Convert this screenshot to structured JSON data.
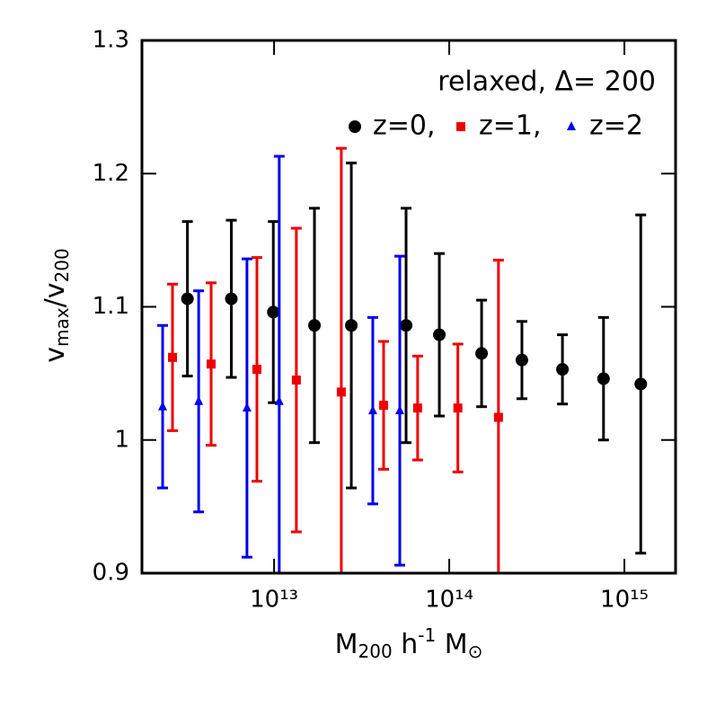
{
  "chart_data": {
    "type": "errorbar",
    "annotation": "relaxed, Δ= 200",
    "x_label": [
      "M",
      "200",
      " h",
      "-1",
      " M",
      "⊙"
    ],
    "y_label": [
      "v",
      "max",
      "/v",
      "200"
    ],
    "log_x": true,
    "xlim": [
      1760000000000.0,
      1960000000000000.0
    ],
    "ylim": [
      0.9,
      1.3
    ],
    "xticks": [
      {
        "value": 10000000000000.0,
        "label": "10¹³"
      },
      {
        "value": 100000000000000.0,
        "label": "10¹⁴"
      },
      {
        "value": 1000000000000000.0,
        "label": "10¹⁵"
      }
    ],
    "yticks": [
      0.9,
      1,
      1.1,
      1.2,
      1.3
    ],
    "yticks_labels": [
      "0.9",
      "1",
      "1.1",
      "1.2",
      "1.3"
    ],
    "series": [
      {
        "name": "z=0,",
        "color": "#000000",
        "marker": "circle",
        "x": [
          3200000000000.0,
          5700000000000.0,
          9900000000000.0,
          17000000000000.0,
          27600000000000.0,
          56700000000000.0,
          87800000000000.0,
          153000000000000.0,
          260000000000000.0,
          443000000000000.0,
          760000000000000.0,
          1240000000000000.0
        ],
        "values": [
          1.106,
          1.106,
          1.096,
          1.086,
          1.086,
          1.086,
          1.079,
          1.065,
          1.06,
          1.053,
          1.046,
          1.042
        ],
        "errors": [
          0.058,
          0.059,
          0.068,
          0.088,
          0.122,
          0.088,
          0.061,
          0.04,
          0.029,
          0.026,
          0.046,
          0.127
        ]
      },
      {
        "name": "z=1,",
        "color": "#ee0000",
        "marker": "square",
        "x": [
          2630000000000.0,
          4370000000000.0,
          7980000000000.0,
          13400000000000.0,
          24200000000000.0,
          42200000000000.0,
          66000000000000.0,
          112000000000000.0,
          191000000000000.0
        ],
        "values": [
          1.062,
          1.057,
          1.053,
          1.045,
          1.036,
          1.026,
          1.024,
          1.024,
          1.017
        ],
        "errors": [
          0.055,
          0.061,
          0.084,
          0.114,
          0.183,
          0.048,
          0.039,
          0.048,
          0.118
        ]
      },
      {
        "name": "z=2",
        "color": "#0000ee",
        "marker": "triangle",
        "x": [
          2310000000000.0,
          3710000000000.0,
          7000000000000.0,
          10700000000000.0,
          36600000000000.0,
          52200000000000.0
        ],
        "values": [
          1.025,
          1.029,
          1.024,
          1.029,
          1.022,
          1.022
        ],
        "errors": [
          0.061,
          0.083,
          0.112,
          0.184,
          0.07,
          0.116
        ]
      }
    ]
  }
}
